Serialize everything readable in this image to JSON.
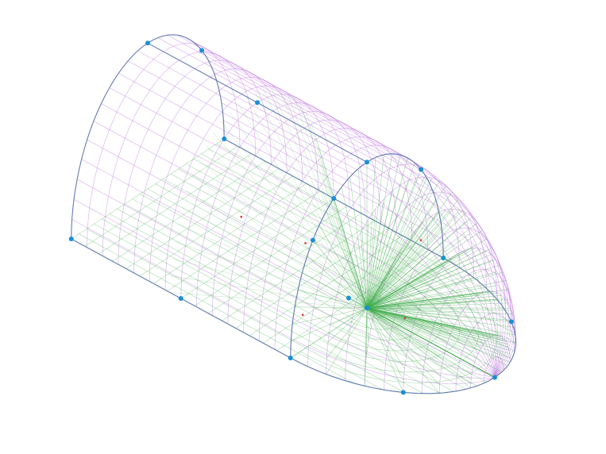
{
  "view": {
    "background": "#ffffff",
    "colors": {
      "dome_mesh": "#c07ae0",
      "interior_mesh": "#3fae4b",
      "edge_lines": "#4f6fa8",
      "vertex_points": "#1a8fd6",
      "marker_points": "#e04040"
    }
  },
  "model": {
    "description_shape": "half-cylinder-with-quarter-sphere-end",
    "structure": "wireframe-mesh"
  }
}
